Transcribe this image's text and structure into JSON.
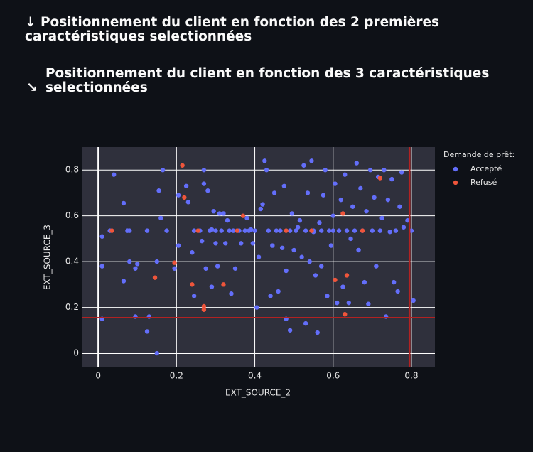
{
  "headings": [
    {
      "icon": "↓",
      "text": "Positionnement du client en fonction des 2 premières caractéristiques selectionnées"
    },
    {
      "icon": "↘",
      "text": "Positionnement du client en fonction des 3 caractéristiques selectionnées"
    }
  ],
  "chart_data": {
    "type": "scatter",
    "x_label": "EXT_SOURCE_2",
    "y_label": "EXT_SOURCE_3",
    "xlim": [
      -0.042,
      0.86
    ],
    "ylim": [
      -0.062,
      0.9
    ],
    "xticks": [
      0,
      0.2,
      0.4,
      0.6,
      0.8
    ],
    "yticks": [
      0,
      0.2,
      0.4,
      0.6,
      0.8
    ],
    "grid": true,
    "legend_title": "Demande de prêt:",
    "legend": "right",
    "reference_lines": {
      "x": 0.795,
      "y": 0.156,
      "color": "#b22222"
    },
    "series": [
      {
        "name": "Accepté",
        "color": "#636efa",
        "x": [
          0.01,
          0.01,
          0.01,
          0.03,
          0.04,
          0.065,
          0.065,
          0.075,
          0.08,
          0.08,
          0.095,
          0.095,
          0.1,
          0.125,
          0.125,
          0.13,
          0.15,
          0.15,
          0.155,
          0.16,
          0.165,
          0.175,
          0.195,
          0.205,
          0.205,
          0.225,
          0.23,
          0.24,
          0.245,
          0.245,
          0.26,
          0.265,
          0.27,
          0.27,
          0.275,
          0.28,
          0.285,
          0.29,
          0.29,
          0.295,
          0.3,
          0.3,
          0.305,
          0.31,
          0.315,
          0.32,
          0.325,
          0.33,
          0.335,
          0.34,
          0.345,
          0.35,
          0.36,
          0.365,
          0.375,
          0.38,
          0.385,
          0.39,
          0.395,
          0.4,
          0.405,
          0.41,
          0.415,
          0.42,
          0.425,
          0.43,
          0.435,
          0.44,
          0.445,
          0.45,
          0.455,
          0.46,
          0.465,
          0.47,
          0.475,
          0.48,
          0.49,
          0.495,
          0.5,
          0.505,
          0.51,
          0.515,
          0.52,
          0.525,
          0.53,
          0.535,
          0.54,
          0.545,
          0.55,
          0.555,
          0.56,
          0.565,
          0.57,
          0.575,
          0.58,
          0.585,
          0.59,
          0.595,
          0.6,
          0.605,
          0.61,
          0.615,
          0.62,
          0.625,
          0.63,
          0.635,
          0.64,
          0.645,
          0.65,
          0.655,
          0.66,
          0.665,
          0.67,
          0.675,
          0.68,
          0.685,
          0.69,
          0.695,
          0.7,
          0.705,
          0.71,
          0.715,
          0.72,
          0.725,
          0.73,
          0.735,
          0.74,
          0.745,
          0.75,
          0.755,
          0.76,
          0.765,
          0.77,
          0.775,
          0.78,
          0.79,
          0.8,
          0.805,
          0.48,
          0.49,
          0.6,
          0.57,
          0.55,
          0.53
        ],
        "y": [
          0.15,
          0.38,
          0.51,
          0.535,
          0.78,
          0.655,
          0.315,
          0.535,
          0.535,
          0.4,
          0.16,
          0.37,
          0.39,
          0.095,
          0.535,
          0.16,
          0.0,
          0.4,
          0.71,
          0.59,
          0.8,
          0.535,
          0.37,
          0.69,
          0.47,
          0.73,
          0.66,
          0.44,
          0.25,
          0.535,
          0.535,
          0.49,
          0.8,
          0.74,
          0.37,
          0.71,
          0.535,
          0.29,
          0.54,
          0.62,
          0.48,
          0.535,
          0.38,
          0.61,
          0.535,
          0.61,
          0.48,
          0.58,
          0.535,
          0.26,
          0.535,
          0.37,
          0.535,
          0.48,
          0.535,
          0.59,
          0.535,
          0.54,
          0.48,
          0.535,
          0.2,
          0.42,
          0.63,
          0.65,
          0.84,
          0.8,
          0.535,
          0.25,
          0.47,
          0.7,
          0.535,
          0.27,
          0.535,
          0.46,
          0.73,
          0.36,
          0.535,
          0.61,
          0.45,
          0.535,
          0.55,
          0.58,
          0.42,
          0.82,
          0.13,
          0.7,
          0.4,
          0.84,
          0.53,
          0.34,
          0.09,
          0.57,
          0.38,
          0.69,
          0.8,
          0.25,
          0.535,
          0.47,
          0.6,
          0.74,
          0.22,
          0.535,
          0.67,
          0.29,
          0.78,
          0.535,
          0.22,
          0.5,
          0.64,
          0.535,
          0.83,
          0.45,
          0.72,
          0.535,
          0.31,
          0.62,
          0.215,
          0.8,
          0.535,
          0.68,
          0.38,
          0.77,
          0.535,
          0.59,
          0.8,
          0.16,
          0.67,
          0.53,
          0.76,
          0.31,
          0.535,
          0.27,
          0.64,
          0.79,
          0.55,
          0.58,
          0.535,
          0.23,
          0.15,
          0.1,
          0.535,
          0.535,
          0.535,
          0.535
        ]
      },
      {
        "name": "Refusé",
        "color": "#ef553b",
        "x": [
          0.035,
          0.145,
          0.215,
          0.22,
          0.195,
          0.24,
          0.255,
          0.27,
          0.27,
          0.32,
          0.37,
          0.355,
          0.48,
          0.545,
          0.605,
          0.625,
          0.63,
          0.635,
          0.675,
          0.72
        ],
        "y": [
          0.535,
          0.33,
          0.82,
          0.68,
          0.395,
          0.3,
          0.535,
          0.205,
          0.19,
          0.3,
          0.6,
          0.535,
          0.535,
          0.535,
          0.32,
          0.61,
          0.17,
          0.34,
          0.535,
          0.765
        ]
      }
    ]
  }
}
